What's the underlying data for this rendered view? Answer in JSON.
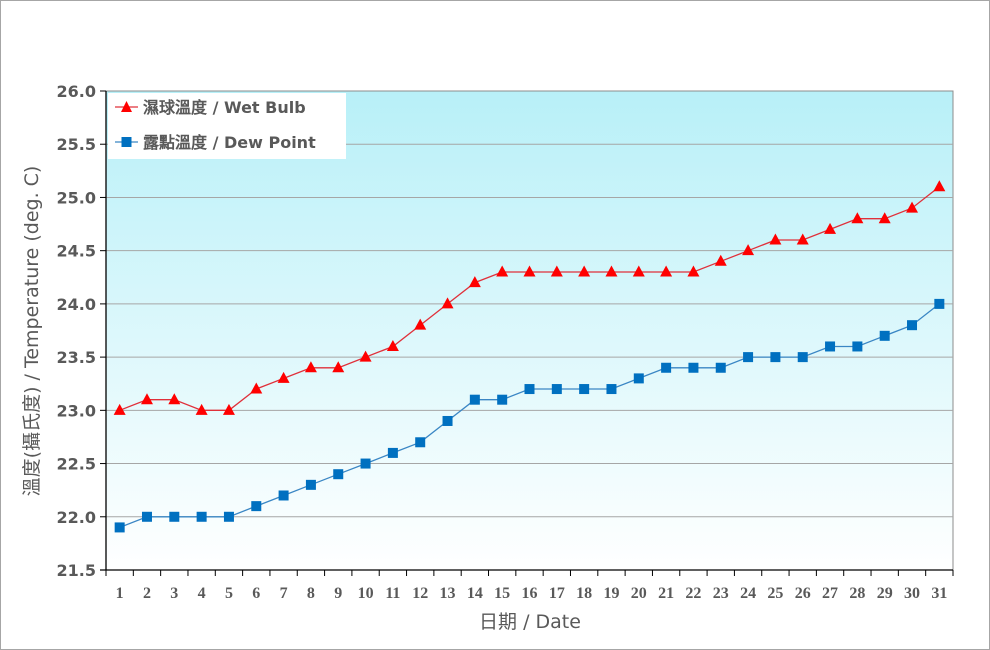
{
  "chart_data": {
    "type": "line",
    "title": "",
    "xlabel": "日期 / Date",
    "ylabel": "溫度(攝氏度) / Temperature (deg. C)",
    "ylim": [
      21.5,
      26.0
    ],
    "yticks": [
      "21.5",
      "22.0",
      "22.5",
      "23.0",
      "23.5",
      "24.0",
      "24.5",
      "25.0",
      "25.5",
      "26.0"
    ],
    "categories": [
      "1",
      "2",
      "3",
      "4",
      "5",
      "6",
      "7",
      "8",
      "9",
      "10",
      "11",
      "12",
      "13",
      "14",
      "15",
      "16",
      "17",
      "18",
      "19",
      "20",
      "21",
      "22",
      "23",
      "24",
      "25",
      "26",
      "27",
      "28",
      "29",
      "30",
      "31"
    ],
    "grid": true,
    "legend_position": "top-left inside",
    "series": [
      {
        "name": "濕球溫度 / Wet Bulb",
        "color": "#ff0000",
        "marker": "triangle",
        "values": [
          23.0,
          23.1,
          23.1,
          23.0,
          23.0,
          23.2,
          23.3,
          23.4,
          23.4,
          23.5,
          23.6,
          23.8,
          24.0,
          24.2,
          24.3,
          24.3,
          24.3,
          24.3,
          24.3,
          24.3,
          24.3,
          24.3,
          24.4,
          24.5,
          24.6,
          24.6,
          24.7,
          24.8,
          24.8,
          24.9,
          25.1
        ]
      },
      {
        "name": "露點溫度 / Dew Point",
        "color": "#0070c0",
        "marker": "square",
        "values": [
          21.9,
          22.0,
          22.0,
          22.0,
          22.0,
          22.1,
          22.2,
          22.3,
          22.4,
          22.5,
          22.6,
          22.7,
          22.9,
          23.1,
          23.1,
          23.2,
          23.2,
          23.2,
          23.2,
          23.3,
          23.4,
          23.4,
          23.4,
          23.5,
          23.5,
          23.5,
          23.6,
          23.6,
          23.7,
          23.8,
          24.0
        ]
      }
    ]
  },
  "legend": {
    "wet_bulb": "濕球溫度 / Wet Bulb",
    "dew_point": "露點溫度 / Dew Point"
  },
  "axes": {
    "x_title": "日期 / Date",
    "y_title": "溫度(攝氏度) / Temperature (deg. C)"
  },
  "colors": {
    "wet_bulb": "#ff0000",
    "wet_bulb_line": "#e0303a",
    "dew_point": "#0070c0",
    "dew_point_line": "#3a86c4",
    "plot_top": "#b8f0f8",
    "plot_bottom": "#ffffff",
    "grid": "#a6a6a6",
    "text": "#595959"
  }
}
